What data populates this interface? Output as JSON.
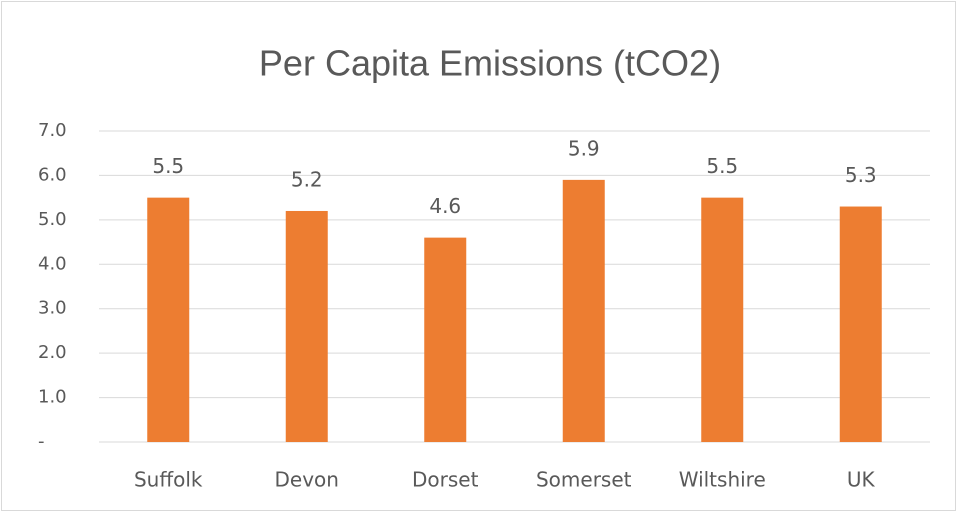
{
  "chart_data": {
    "type": "bar",
    "title": "Per Capita Emissions (tCO2)",
    "categories": [
      "Suffolk",
      "Devon",
      "Dorset",
      "Somerset",
      "Wiltshire",
      "UK"
    ],
    "values": [
      5.5,
      5.2,
      4.6,
      5.9,
      5.5,
      5.3
    ],
    "color": "#ed7d31",
    "ylim": [
      0,
      7
    ],
    "yticks": [
      {
        "value": 0,
        "label": "-"
      },
      {
        "value": 1,
        "label": "1.0"
      },
      {
        "value": 2,
        "label": "2.0"
      },
      {
        "value": 3,
        "label": "3.0"
      },
      {
        "value": 4,
        "label": "4.0"
      },
      {
        "value": 5,
        "label": "5.0"
      },
      {
        "value": 6,
        "label": "6.0"
      },
      {
        "value": 7,
        "label": "7.0"
      }
    ],
    "grid": true
  }
}
